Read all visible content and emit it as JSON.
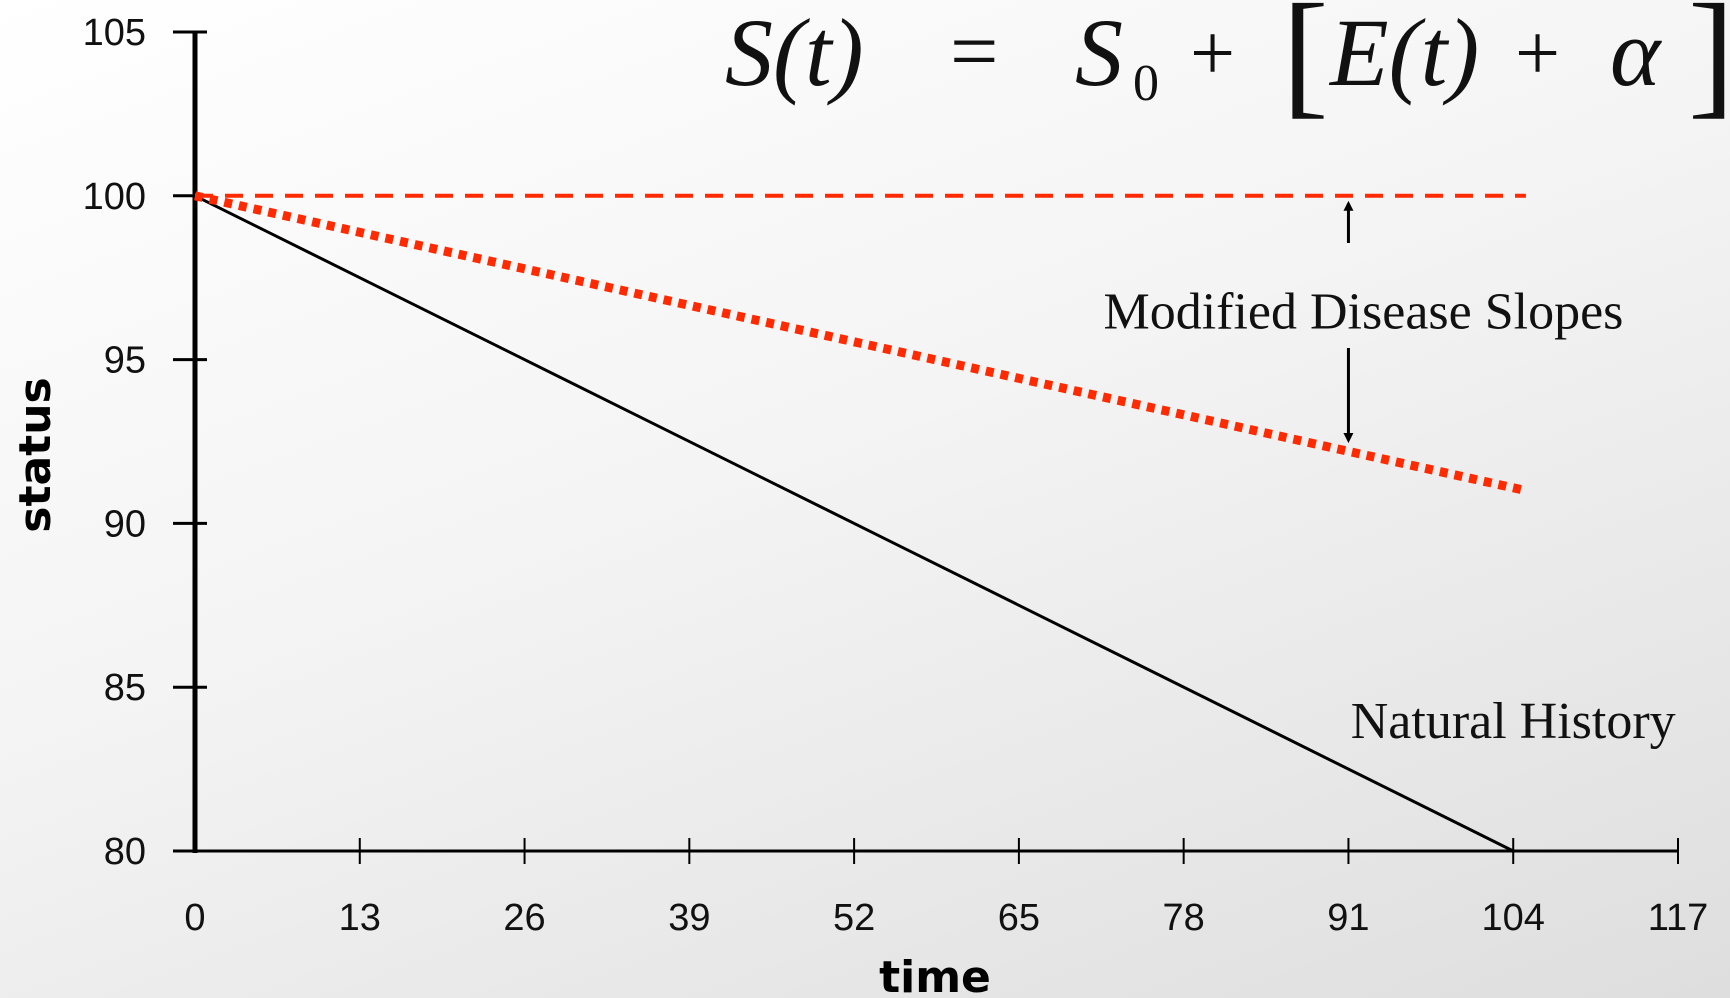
{
  "formula": {
    "lhs": "S(t)",
    "eq": "=",
    "s": "S",
    "sub": "0",
    "plus": "+",
    "lbracket": "[",
    "term": "E(t)",
    "plus2": "+",
    "alpha": "α",
    "rbracket": "]"
  },
  "chart_data": {
    "type": "line",
    "xlabel": "time",
    "ylabel": "status",
    "xlim": [
      0,
      117
    ],
    "ylim": [
      80,
      105
    ],
    "xticks": [
      0,
      13,
      26,
      39,
      52,
      65,
      78,
      91,
      104,
      117
    ],
    "yticks": [
      80,
      85,
      90,
      95,
      100,
      105
    ],
    "grid": false,
    "series": [
      {
        "name": "Natural History",
        "style": "solid",
        "color": "#000000",
        "x": [
          0,
          104
        ],
        "y": [
          100,
          80
        ]
      },
      {
        "name": "",
        "style": "dotted",
        "color": "#ff2a00",
        "x": [
          0,
          105
        ],
        "y": [
          100,
          91
        ]
      },
      {
        "name": "",
        "style": "dashed",
        "color": "#ff2a00",
        "x": [
          0,
          105
        ],
        "y": [
          100,
          100
        ]
      }
    ],
    "annotations": [
      {
        "text": "Modified Disease Slopes",
        "x": 91,
        "y": 96.5,
        "arrows": {
          "up_to_y": 100,
          "down_to_y": 92.3
        }
      },
      {
        "text": "Natural History",
        "x": 104,
        "y": 84
      }
    ]
  }
}
